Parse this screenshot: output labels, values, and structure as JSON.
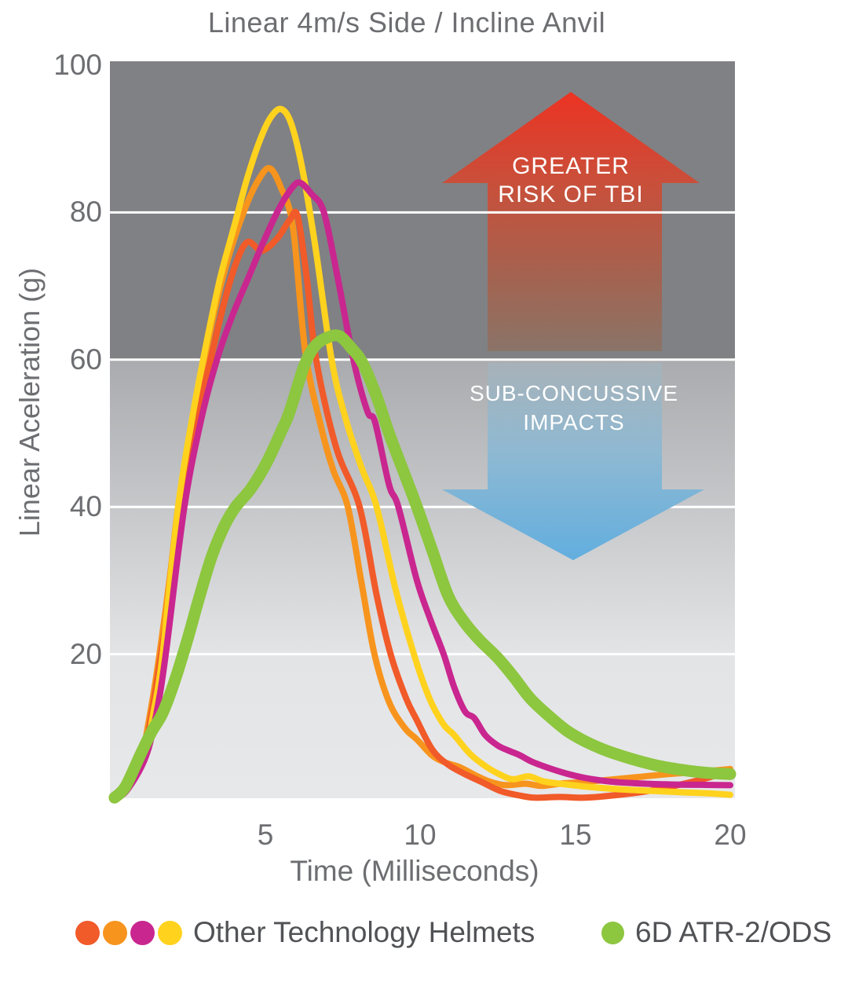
{
  "title": "Linear 4m/s Side / Incline Anvil",
  "axes": {
    "y_label": "Linear Aceleration (g)",
    "x_label": "Time (Milliseconds)"
  },
  "annotations": {
    "tbi_line1": "GREATER",
    "tbi_line2": "RISK OF TBI",
    "sub_line1": "SUB-CONCUSSIVE",
    "sub_line2": "IMPACTS"
  },
  "legend": {
    "other": {
      "label": "Other Technology Helmets",
      "dot_colors": [
        "#F15A29",
        "#F7941D",
        "#C9268F",
        "#FFD21E"
      ]
    },
    "sixd": {
      "label": "6D ATR-2/ODS",
      "dot_color": "#8DC63F"
    }
  },
  "colors": {
    "axis_text": "#6D6E71",
    "legend_text": "#515255",
    "gridline": "#FFFFFF",
    "high_risk_zone": "#808184",
    "risk_arrow_gradient": [
      [
        "0%",
        "#EC3323"
      ],
      [
        "35%",
        "#C94F3A"
      ],
      [
        "70%",
        "#A5624F"
      ],
      [
        "100%",
        "#8A7468"
      ]
    ],
    "sub_arrow_gradient": [
      [
        "0%",
        "#A7B2B9"
      ],
      [
        "45%",
        "#8FB9D2"
      ],
      [
        "100%",
        "#62AEDF"
      ]
    ],
    "lower_zone_gradient": [
      [
        "0%",
        "#A9ABAE"
      ],
      [
        "67%",
        "#E3E4E6"
      ],
      [
        "100%",
        "#E7E8EA"
      ]
    ],
    "arrow_text": "#FFFFFF"
  },
  "chart_data": {
    "type": "line",
    "title": "Linear 4m/s Side / Incline Anvil",
    "xlabel": "Time (Milliseconds)",
    "ylabel": "Linear Aceleration (g)",
    "xlim": [
      0,
      20
    ],
    "ylim": [
      0,
      100
    ],
    "xticks": [
      5,
      10,
      15,
      20
    ],
    "yticks": [
      100,
      80,
      60,
      40,
      20
    ],
    "gridlines_at": [
      20,
      40,
      60,
      80
    ],
    "risk_zone_boundary_g": 60,
    "legend_position": "bottom",
    "series": [
      {
        "name": "Other Technology Helmet 1 (orange)",
        "color": "#F7941D",
        "stroke_width": 8,
        "peak": {
          "t": 5.15,
          "g": 86
        },
        "points": [
          [
            0.1,
            0.2
          ],
          [
            0.5,
            2
          ],
          [
            1,
            6
          ],
          [
            1.3,
            12
          ],
          [
            1.6,
            20
          ],
          [
            1.95,
            31
          ],
          [
            2.2,
            40
          ],
          [
            2.6,
            50
          ],
          [
            3,
            59
          ],
          [
            3.45,
            68
          ],
          [
            3.9,
            75
          ],
          [
            4.4,
            81
          ],
          [
            4.8,
            84.5
          ],
          [
            5.15,
            86
          ],
          [
            5.5,
            83.5
          ],
          [
            5.9,
            78
          ],
          [
            6.3,
            61
          ],
          [
            6.8,
            51
          ],
          [
            7.2,
            45
          ],
          [
            7.67,
            40
          ],
          [
            8.1,
            30
          ],
          [
            8.53,
            20
          ],
          [
            9,
            13.5
          ],
          [
            9.5,
            10
          ],
          [
            9.9,
            8.4
          ],
          [
            10.4,
            6.2
          ],
          [
            10.8,
            5.3
          ],
          [
            11.3,
            4.6
          ],
          [
            11.8,
            3.5
          ],
          [
            12.3,
            2.6
          ],
          [
            12.8,
            2.2
          ],
          [
            13.4,
            2.4
          ],
          [
            13.9,
            2.1
          ],
          [
            14.5,
            2.4
          ],
          [
            15.2,
            2.6
          ],
          [
            16,
            2.9
          ],
          [
            17,
            3.3
          ],
          [
            18,
            3.7
          ],
          [
            19,
            4
          ],
          [
            20,
            4.4
          ]
        ]
      },
      {
        "name": "Other Technology Helmet 2 (red-orange)",
        "color": "#F15A29",
        "stroke_width": 8,
        "peak": {
          "t": 6.05,
          "g": 79.5
        },
        "points": [
          [
            0.1,
            0.2
          ],
          [
            0.5,
            2
          ],
          [
            1.05,
            6
          ],
          [
            1.35,
            12
          ],
          [
            1.65,
            20
          ],
          [
            2.05,
            31
          ],
          [
            2.3,
            40
          ],
          [
            2.7,
            50
          ],
          [
            3.3,
            61
          ],
          [
            3.7,
            68
          ],
          [
            4.1,
            73.5
          ],
          [
            4.45,
            76
          ],
          [
            4.9,
            74.8
          ],
          [
            5.4,
            76.5
          ],
          [
            5.8,
            79
          ],
          [
            6.05,
            79.5
          ],
          [
            6.35,
            71
          ],
          [
            6.65,
            60
          ],
          [
            7.3,
            48
          ],
          [
            8.05,
            40
          ],
          [
            8.6,
            28
          ],
          [
            9.05,
            20
          ],
          [
            9.55,
            14
          ],
          [
            9.9,
            11
          ],
          [
            10.4,
            7
          ],
          [
            10.9,
            5
          ],
          [
            11.4,
            3.8
          ],
          [
            12,
            2.6
          ],
          [
            12.6,
            1.4
          ],
          [
            13.2,
            0.8
          ],
          [
            13.7,
            0.5
          ],
          [
            14.5,
            0.6
          ],
          [
            15.3,
            0.5
          ],
          [
            16.2,
            0.8
          ],
          [
            17.2,
            1.3
          ],
          [
            18.2,
            2.1
          ],
          [
            19.1,
            3
          ],
          [
            20,
            4.1
          ]
        ]
      },
      {
        "name": "Other Technology Helmet 3 (yellow)",
        "color": "#FFD21E",
        "stroke_width": 8,
        "peak": {
          "t": 5.55,
          "g": 94
        },
        "points": [
          [
            0.15,
            0.2
          ],
          [
            0.55,
            2
          ],
          [
            1.1,
            6
          ],
          [
            1.4,
            12
          ],
          [
            1.7,
            20
          ],
          [
            2.2,
            40
          ],
          [
            2.65,
            52
          ],
          [
            3.1,
            62
          ],
          [
            3.55,
            71
          ],
          [
            4,
            78
          ],
          [
            4.45,
            85
          ],
          [
            4.9,
            90.5
          ],
          [
            5.25,
            93.3
          ],
          [
            5.55,
            94
          ],
          [
            5.85,
            92
          ],
          [
            6.2,
            86
          ],
          [
            6.6,
            76
          ],
          [
            7.15,
            60
          ],
          [
            7.6,
            52
          ],
          [
            8.1,
            45.5
          ],
          [
            8.6,
            40
          ],
          [
            9.2,
            29
          ],
          [
            9.8,
            20
          ],
          [
            10.3,
            14
          ],
          [
            10.75,
            10.5
          ],
          [
            11.1,
            9
          ],
          [
            11.6,
            6.5
          ],
          [
            12.1,
            4.8
          ],
          [
            12.6,
            3.6
          ],
          [
            13,
            3
          ],
          [
            13.5,
            3.4
          ],
          [
            14,
            2.7
          ],
          [
            14.7,
            2.3
          ],
          [
            15.6,
            1.9
          ],
          [
            16.6,
            1.6
          ],
          [
            17.6,
            1.4
          ],
          [
            18.6,
            1.2
          ],
          [
            19.3,
            1.1
          ],
          [
            20,
            0.9
          ]
        ]
      },
      {
        "name": "Other Technology Helmet 4 (magenta)",
        "color": "#C9268F",
        "stroke_width": 8,
        "peak": {
          "t": 6.15,
          "g": 84
        },
        "points": [
          [
            0.1,
            0.2
          ],
          [
            0.55,
            1.5
          ],
          [
            1.15,
            6
          ],
          [
            1.5,
            12
          ],
          [
            1.8,
            20
          ],
          [
            2.4,
            40
          ],
          [
            2.95,
            52
          ],
          [
            3.45,
            60
          ],
          [
            3.95,
            66
          ],
          [
            4.45,
            71
          ],
          [
            4.95,
            76
          ],
          [
            5.45,
            80.5
          ],
          [
            5.9,
            83.5
          ],
          [
            6.15,
            84
          ],
          [
            6.5,
            82.5
          ],
          [
            6.9,
            80
          ],
          [
            7.35,
            71
          ],
          [
            7.85,
            60
          ],
          [
            8.3,
            53
          ],
          [
            8.55,
            51.5
          ],
          [
            9,
            43
          ],
          [
            9.3,
            40
          ],
          [
            9.9,
            30
          ],
          [
            10.35,
            24.5
          ],
          [
            10.76,
            20
          ],
          [
            11.1,
            15.5
          ],
          [
            11.45,
            12.2
          ],
          [
            11.75,
            11.3
          ],
          [
            12.1,
            9
          ],
          [
            12.5,
            7.6
          ],
          [
            12.85,
            6.9
          ],
          [
            13.2,
            6.3
          ],
          [
            13.6,
            5.4
          ],
          [
            14.1,
            4.6
          ],
          [
            14.7,
            3.8
          ],
          [
            15.3,
            3.2
          ],
          [
            16.1,
            2.7
          ],
          [
            17,
            2.45
          ],
          [
            18,
            2.3
          ],
          [
            19,
            2.25
          ],
          [
            20,
            2.2
          ]
        ]
      },
      {
        "name": "6D ATR-2/ODS (green)",
        "color": "#8DC63F",
        "stroke_width": 15,
        "peak": {
          "t": 7.2,
          "g": 63
        },
        "points": [
          [
            0.15,
            0.5
          ],
          [
            0.5,
            2
          ],
          [
            1,
            6.5
          ],
          [
            1.35,
            9.5
          ],
          [
            1.7,
            12
          ],
          [
            2.1,
            16.5
          ],
          [
            2.5,
            22
          ],
          [
            2.9,
            28
          ],
          [
            3.3,
            33.5
          ],
          [
            3.7,
            37.5
          ],
          [
            4.05,
            40
          ],
          [
            4.55,
            42.5
          ],
          [
            5.05,
            46
          ],
          [
            5.55,
            50.5
          ],
          [
            5.8,
            53
          ],
          [
            6.25,
            59
          ],
          [
            6.6,
            61.8
          ],
          [
            7,
            63
          ],
          [
            7.4,
            63.2
          ],
          [
            7.8,
            61.5
          ],
          [
            8.15,
            59.5
          ],
          [
            8.6,
            55
          ],
          [
            9,
            50
          ],
          [
            9.45,
            45
          ],
          [
            9.9,
            40
          ],
          [
            10.4,
            34
          ],
          [
            10.9,
            28
          ],
          [
            11.4,
            24.5
          ],
          [
            11.9,
            22
          ],
          [
            12.5,
            19.5
          ],
          [
            13,
            17
          ],
          [
            13.55,
            14
          ],
          [
            14.1,
            11.8
          ],
          [
            14.7,
            9.7
          ],
          [
            15.3,
            8.2
          ],
          [
            16,
            6.9
          ],
          [
            16.8,
            5.8
          ],
          [
            17.6,
            4.9
          ],
          [
            18.4,
            4.3
          ],
          [
            19.2,
            3.9
          ],
          [
            20,
            3.7
          ]
        ]
      }
    ]
  }
}
